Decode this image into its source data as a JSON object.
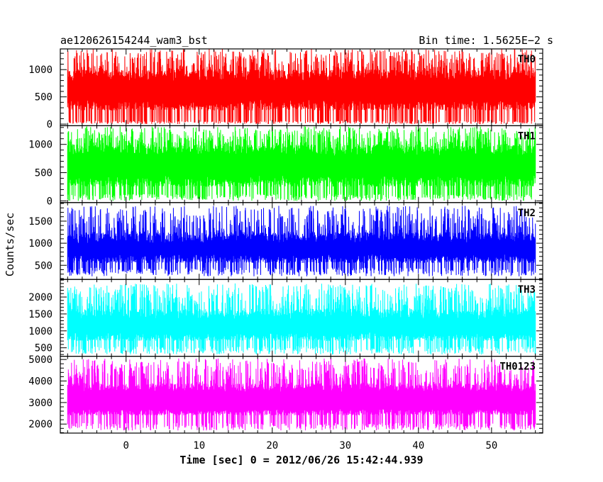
{
  "header": {
    "title": "ae120626154244_wam3_bst",
    "bin_time": "Bin time: 1.5625E−2 s"
  },
  "chart_data": {
    "type": "line",
    "xlabel": "Time [sec] 0 = 2012/06/26 15:42:44.939",
    "ylabel": "Counts/sec",
    "xlim": [
      -9,
      57
    ],
    "x_range": [
      -8,
      56
    ],
    "x_ticks": [
      0,
      10,
      20,
      30,
      40,
      50
    ],
    "panels": [
      {
        "name": "TH0",
        "color": "#ff0000",
        "ylim": [
          -30,
          1380
        ],
        "ticks": [
          0,
          500,
          1000
        ],
        "base": [
          0,
          60
        ],
        "q1": [
          250,
          450
        ],
        "q3": [
          800,
          1000
        ],
        "top": [
          1000,
          1380
        ]
      },
      {
        "name": "TH1",
        "color": "#00ff00",
        "ylim": [
          -30,
          1330
        ],
        "ticks": [
          0,
          500,
          1000
        ],
        "base": [
          0,
          120
        ],
        "q1": [
          250,
          450
        ],
        "q3": [
          800,
          1000
        ],
        "top": [
          1000,
          1320
        ]
      },
      {
        "name": "TH2",
        "color": "#0000ff",
        "ylim": [
          180,
          1920
        ],
        "ticks": [
          500,
          1000,
          1500
        ],
        "base": [
          250,
          450
        ],
        "q1": [
          550,
          750
        ],
        "q3": [
          1000,
          1250
        ],
        "top": [
          1250,
          1850
        ]
      },
      {
        "name": "TH3",
        "color": "#00ffff",
        "ylim": [
          250,
          2520
        ],
        "ticks": [
          500,
          1000,
          1500,
          2000
        ],
        "base": [
          300,
          550
        ],
        "q1": [
          700,
          950
        ],
        "q3": [
          1350,
          1650
        ],
        "top": [
          1650,
          2400
        ]
      },
      {
        "name": "TH0123",
        "color": "#ff00ff",
        "ylim": [
          1580,
          5150
        ],
        "ticks": [
          2000,
          3000,
          4000,
          5000
        ],
        "base": [
          1700,
          2050
        ],
        "q1": [
          2400,
          2700
        ],
        "q3": [
          3500,
          3900
        ],
        "top": [
          3900,
          5050
        ]
      }
    ]
  }
}
